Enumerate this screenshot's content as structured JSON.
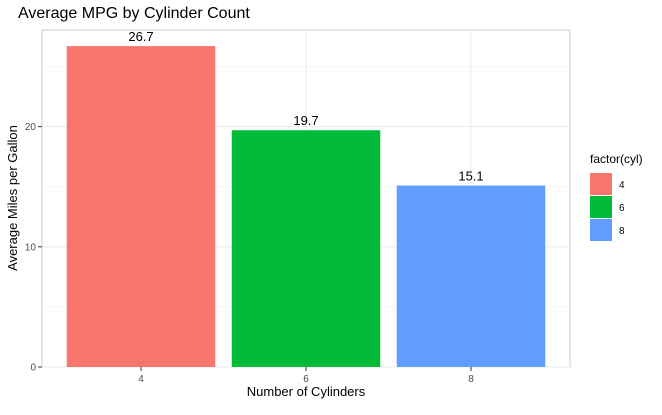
{
  "chart_data": {
    "type": "bar",
    "title": "Average MPG by Cylinder Count",
    "xlabel": "Number of Cylinders",
    "ylabel": "Average Miles per Gallon",
    "categories": [
      "4",
      "6",
      "8"
    ],
    "values": [
      26.7,
      19.7,
      15.1
    ],
    "data_labels": [
      "26.7",
      "19.7",
      "15.1"
    ],
    "colors": [
      "#F8766D",
      "#00BA38",
      "#619CFF"
    ],
    "ylim": [
      0,
      28.04
    ],
    "yticks": [
      0,
      10,
      20
    ],
    "ytick_labels": [
      "0",
      "10",
      "20"
    ],
    "grid": true,
    "legend": {
      "title": "factor(cyl)",
      "position": "right",
      "entries": [
        "4",
        "6",
        "8"
      ]
    }
  }
}
